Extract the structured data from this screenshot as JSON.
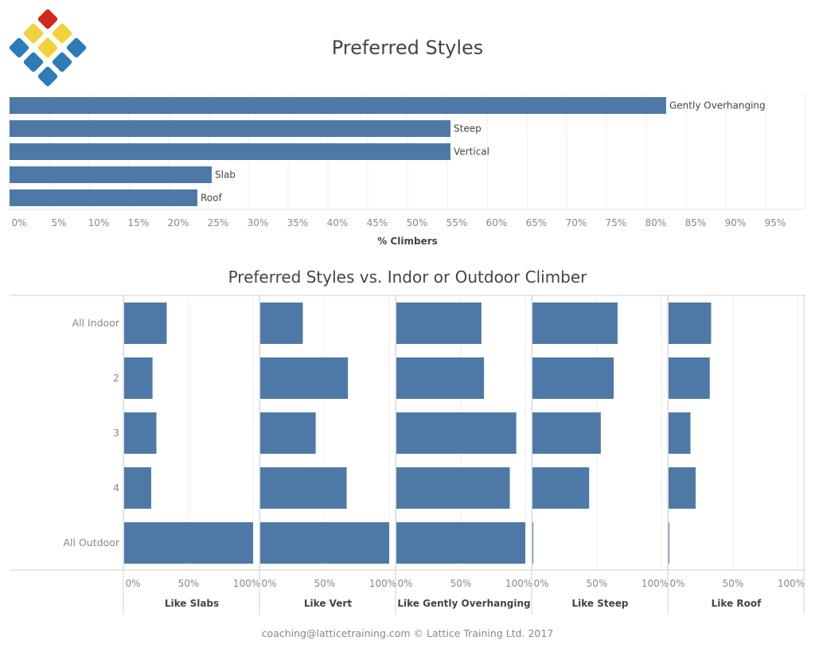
{
  "header": {
    "title": "Preferred Styles"
  },
  "footer": {
    "text": "coaching@latticetraining.com © Lattice Training Ltd. 2017"
  },
  "logo": {
    "colors": [
      "#cc2a1d",
      "#f2d13a",
      "#2f7bb5"
    ]
  },
  "chart_data": [
    {
      "type": "bar",
      "orientation": "horizontal",
      "title": "Preferred Styles",
      "xlabel": "% Climbers",
      "categories": [
        "Gently Overhanging",
        "Steep",
        "Vertical",
        "Slab",
        "Roof"
      ],
      "values": [
        82.5,
        55.4,
        55.4,
        25.4,
        23.6
      ],
      "xlim": [
        0,
        100
      ],
      "xticks": [
        "0%",
        "5%",
        "10%",
        "15%",
        "20%",
        "25%",
        "30%",
        "35%",
        "40%",
        "45%",
        "50%",
        "55%",
        "60%",
        "65%",
        "70%",
        "75%",
        "80%",
        "85%",
        "90%",
        "95%"
      ],
      "color": "#4e79a7",
      "grid": true
    },
    {
      "type": "bar",
      "orientation": "horizontal",
      "layout": "small-multiples",
      "title": "Preferred Styles vs. Indor or Outdoor Climber",
      "rows": [
        "All Indoor",
        "2",
        "3",
        "4",
        "All Outdoor"
      ],
      "xticks": [
        "0%",
        "50%",
        "100%"
      ],
      "xlim": [
        0,
        100
      ],
      "color": "#4e79a7",
      "series": [
        {
          "name": "Like Slabs",
          "values": [
            33,
            22,
            25,
            21,
            100
          ]
        },
        {
          "name": "Like Vert",
          "values": [
            33,
            68,
            43,
            67,
            100
          ]
        },
        {
          "name": "Like Gently Overhanging",
          "values": [
            66,
            68,
            93,
            88,
            100
          ]
        },
        {
          "name": "Like Steep",
          "values": [
            66,
            63,
            53,
            44,
            0.5
          ]
        },
        {
          "name": "Like Roof",
          "values": [
            33,
            32,
            17,
            21,
            0.5
          ]
        }
      ]
    }
  ]
}
